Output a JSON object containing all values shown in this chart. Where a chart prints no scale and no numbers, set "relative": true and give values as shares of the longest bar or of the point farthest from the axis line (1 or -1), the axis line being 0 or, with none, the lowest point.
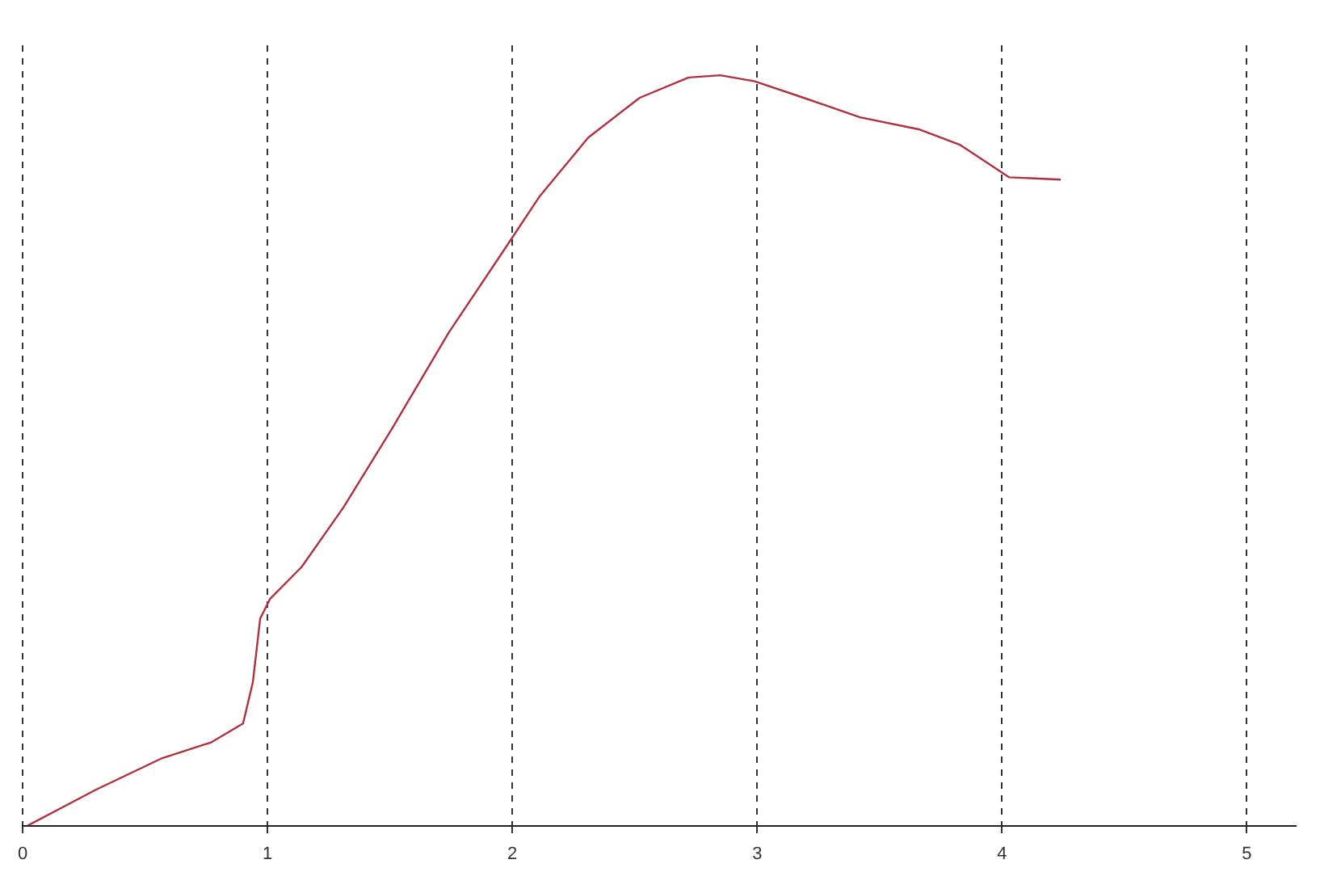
{
  "chart_data": {
    "type": "line",
    "relative": true,
    "xlim": [
      0,
      5.2
    ],
    "xticks": [
      0,
      1,
      2,
      3,
      4,
      5
    ],
    "grid": "x",
    "line_style": "solid",
    "marker": "none",
    "legend": false,
    "series": [
      {
        "color": "#b03040",
        "x": [
          0.02,
          0.3,
          0.57,
          0.77,
          0.9,
          0.94,
          0.97,
          1.01,
          1.14,
          1.31,
          1.51,
          1.74,
          1.98,
          2.11,
          2.31,
          2.52,
          2.72,
          2.85,
          2.99,
          3.19,
          3.42,
          3.66,
          3.83,
          4.03,
          4.24
        ],
        "values": [
          0,
          0.048,
          0.09,
          0.111,
          0.136,
          0.191,
          0.276,
          0.302,
          0.345,
          0.424,
          0.53,
          0.657,
          0.774,
          0.838,
          0.917,
          0.97,
          0.997,
          1,
          0.992,
          0.97,
          0.944,
          0.928,
          0.907,
          0.864,
          0.861
        ]
      }
    ]
  }
}
